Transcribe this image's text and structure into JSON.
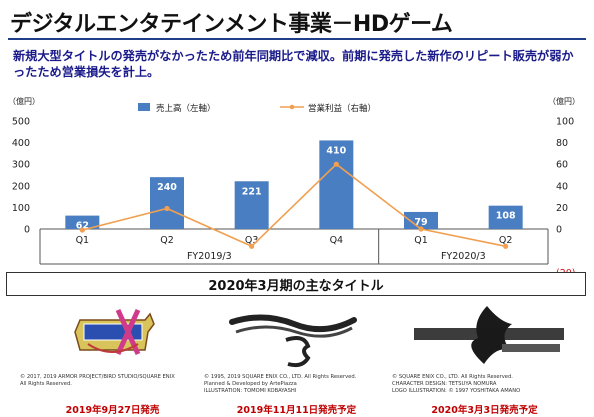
{
  "header": {
    "title": "デジタルエンタテインメント事業－HDゲーム",
    "subtitle": "新規大型タイトルの発売がなかったため前年同期比で減収。前期に発売した新作のリピート販売が弱かったため営業損失を計上。"
  },
  "chart_data": {
    "type": "bar",
    "categories": [
      "Q1",
      "Q2",
      "Q3",
      "Q4",
      "Q1",
      "Q2"
    ],
    "groups": [
      {
        "label": "FY2019/3",
        "categories": [
          "Q1",
          "Q2",
          "Q3",
          "Q4"
        ]
      },
      {
        "label": "FY2020/3",
        "categories": [
          "Q1",
          "Q2"
        ]
      }
    ],
    "series": [
      {
        "name": "売上高（左軸）",
        "type": "bar",
        "axis": "left",
        "color": "#4a7ec2",
        "values": [
          62,
          240,
          221,
          410,
          79,
          108
        ],
        "labels": [
          "62",
          "240",
          "221",
          "410",
          "79",
          "108"
        ]
      },
      {
        "name": "営業利益（右軸）",
        "type": "line",
        "axis": "right",
        "color": "#f0a050",
        "values": [
          -1,
          19,
          -16,
          60,
          0,
          -16
        ]
      }
    ],
    "y_left": {
      "unit": "（億円）",
      "range": [
        -100,
        500
      ],
      "ticks": [
        "500",
        "400",
        "300",
        "200",
        "100",
        "0"
      ]
    },
    "y_right": {
      "unit": "（億円）",
      "range": [
        -20,
        100
      ],
      "ticks": [
        "100",
        "80",
        "60",
        "40",
        "20",
        "0",
        "(20)"
      ]
    },
    "legend_position": "top",
    "grid": false
  },
  "titles_box": "2020年3月期の主なタイトル",
  "games": [
    {
      "logo": "DRAGON QUEST XI",
      "copyright": [
        "© 2017, 2019 ARMOR PROJECT/BIRD STUDIO/SQUARE ENIX",
        "All Rights Reserved."
      ],
      "release": "2019年9月27日発売"
    },
    {
      "logo": "Romancing SaGa 3",
      "copyright": [
        "© 1995, 2019 SQUARE ENIX CO., LTD. All Rights Reserved.",
        "Planned & Developed by ArtePiazza",
        "ILLUSTRATION: TOMOMI KOBAYASHI"
      ],
      "release": "2019年11月11日発売予定"
    },
    {
      "logo": "FINAL FANTASY VII REMAKE",
      "copyright": [
        "© SQUARE ENIX CO., LTD. All Rights Reserved.",
        "CHARACTER DESIGN: TETSUYA NOMURA",
        "LOGO ILLUSTRATION: © 1997 YOSHITAKA AMANO"
      ],
      "release": "2020年3月3日発売予定"
    }
  ]
}
